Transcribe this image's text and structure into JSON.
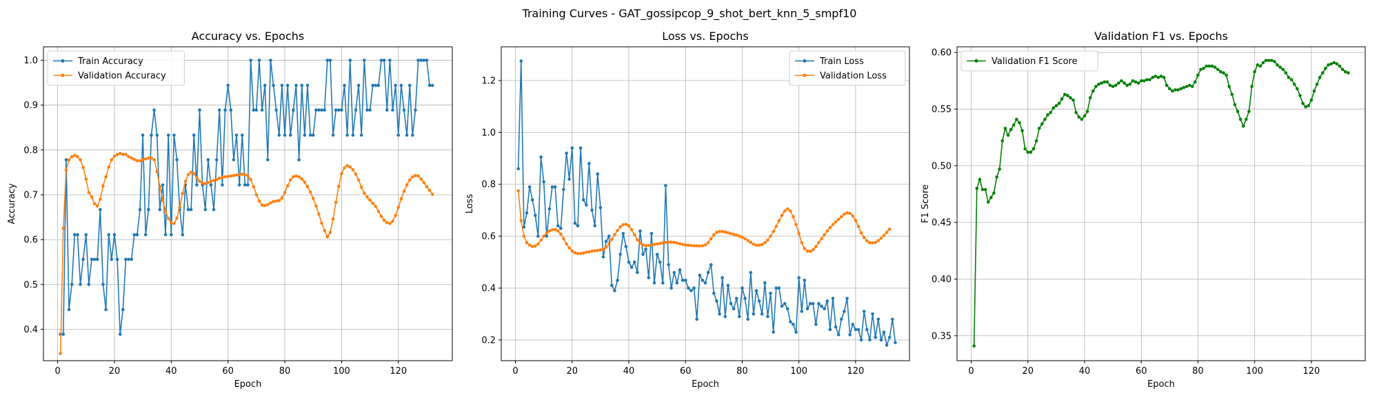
{
  "figure": {
    "suptitle": "Training Curves - GAT_gossipcop_9_shot_bert_knn_5_smpf10",
    "colors": {
      "blue": "#1f77b4",
      "orange": "#ff7f0e",
      "green": "#008000",
      "grid": "#b0b0b0"
    }
  },
  "chart_data": [
    {
      "type": "line",
      "title": "Accuracy vs. Epochs",
      "xlabel": "Epoch",
      "ylabel": "Accuracy",
      "xlim": [
        -5,
        139
      ],
      "ylim": [
        0.33,
        1.03
      ],
      "xticks": [
        0,
        20,
        40,
        60,
        80,
        100,
        120
      ],
      "yticks": [
        0.4,
        0.5,
        0.6,
        0.7,
        0.8,
        0.9,
        1.0
      ],
      "ytick_labels": [
        "0.4",
        "0.5",
        "0.6",
        "0.7",
        "0.8",
        "0.9",
        "1.0"
      ],
      "grid": true,
      "legend_loc": "upper left",
      "series": [
        {
          "name": "Train Accuracy",
          "color": "#1f77b4",
          "x_start": 1,
          "values": [
            0.389,
            0.389,
            0.778,
            0.444,
            0.5,
            0.611,
            0.611,
            0.5,
            0.556,
            0.611,
            0.5,
            0.556,
            0.556,
            0.556,
            0.667,
            0.5,
            0.444,
            0.611,
            0.556,
            0.611,
            0.556,
            0.389,
            0.444,
            0.556,
            0.556,
            0.556,
            0.611,
            0.611,
            0.667,
            0.833,
            0.611,
            0.667,
            0.833,
            0.889,
            0.833,
            0.667,
            0.722,
            0.611,
            0.833,
            0.611,
            0.833,
            0.778,
            0.667,
            0.611,
            0.722,
            0.667,
            0.667,
            0.833,
            0.722,
            0.889,
            0.722,
            0.667,
            0.778,
            0.722,
            0.667,
            0.778,
            0.889,
            0.722,
            0.889,
            0.944,
            0.889,
            0.778,
            0.833,
            0.722,
            0.833,
            0.722,
            0.722,
            1.0,
            0.889,
            0.889,
            1.0,
            0.889,
            0.944,
            0.778,
            1.0,
            0.944,
            0.889,
            0.833,
            0.944,
            0.833,
            0.944,
            0.833,
            0.889,
            0.944,
            0.778,
            0.944,
            0.833,
            0.944,
            0.833,
            0.833,
            0.889,
            0.889,
            0.889,
            0.889,
            1.0,
            1.0,
            0.833,
            0.889,
            0.889,
            0.889,
            0.944,
            0.833,
            1.0,
            0.833,
            0.889,
            0.944,
            0.833,
            1.0,
            0.889,
            0.889,
            0.944,
            0.944,
            0.944,
            1.0,
            1.0,
            0.889,
            1.0,
            0.889,
            0.944,
            0.833,
            0.944,
            0.889,
            0.833,
            0.944,
            0.833,
            0.889,
            1.0,
            1.0,
            1.0,
            1.0,
            0.944,
            0.944
          ]
        },
        {
          "name": "Validation Accuracy",
          "color": "#ff7f0e",
          "x_start": 1,
          "values": [
            0.346,
            0.625,
            0.755,
            0.778,
            0.785,
            0.788,
            0.785,
            0.778,
            0.761,
            0.735,
            0.705,
            0.695,
            0.68,
            0.675,
            0.69,
            0.72,
            0.74,
            0.762,
            0.778,
            0.786,
            0.79,
            0.792,
            0.79,
            0.79,
            0.785,
            0.782,
            0.779,
            0.776,
            0.776,
            0.778,
            0.78,
            0.782,
            0.782,
            0.778,
            0.752,
            0.718,
            0.688,
            0.663,
            0.647,
            0.638,
            0.636,
            0.648,
            0.672,
            0.703,
            0.73,
            0.745,
            0.75,
            0.747,
            0.738,
            0.73,
            0.726,
            0.725,
            0.727,
            0.73,
            0.732,
            0.734,
            0.737,
            0.739,
            0.74,
            0.741,
            0.742,
            0.743,
            0.744,
            0.745,
            0.746,
            0.745,
            0.742,
            0.734,
            0.718,
            0.7,
            0.686,
            0.677,
            0.676,
            0.678,
            0.682,
            0.685,
            0.686,
            0.687,
            0.693,
            0.705,
            0.72,
            0.733,
            0.74,
            0.742,
            0.74,
            0.735,
            0.728,
            0.718,
            0.706,
            0.692,
            0.675,
            0.657,
            0.637,
            0.62,
            0.606,
            0.616,
            0.646,
            0.683,
            0.719,
            0.747,
            0.76,
            0.765,
            0.762,
            0.756,
            0.746,
            0.733,
            0.717,
            0.704,
            0.695,
            0.688,
            0.681,
            0.674,
            0.663,
            0.652,
            0.643,
            0.638,
            0.636,
            0.641,
            0.654,
            0.672,
            0.691,
            0.708,
            0.722,
            0.733,
            0.74,
            0.743,
            0.742,
            0.735,
            0.727,
            0.718,
            0.71,
            0.701
          ]
        }
      ]
    },
    {
      "type": "line",
      "title": "Loss vs. Epochs",
      "xlabel": "Epoch",
      "ylabel": "Loss",
      "xlim": [
        -5,
        139
      ],
      "ylim": [
        0.12,
        1.33
      ],
      "xticks": [
        0,
        20,
        40,
        60,
        80,
        100,
        120
      ],
      "yticks": [
        0.2,
        0.4,
        0.6,
        0.8,
        1.0,
        1.2
      ],
      "ytick_labels": [
        "0.2",
        "0.4",
        "0.6",
        "0.8",
        "1.0",
        "1.2"
      ],
      "grid": true,
      "legend_loc": "upper right",
      "series": [
        {
          "name": "Train Loss",
          "color": "#1f77b4",
          "x_start": 1,
          "values": [
            0.86,
            1.275,
            0.635,
            0.69,
            0.79,
            0.74,
            0.68,
            0.6,
            0.905,
            0.81,
            0.6,
            0.705,
            0.79,
            0.79,
            0.64,
            0.63,
            0.78,
            0.92,
            0.82,
            0.94,
            0.65,
            0.64,
            0.94,
            0.74,
            0.72,
            0.88,
            0.7,
            0.64,
            0.84,
            0.71,
            0.52,
            0.58,
            0.6,
            0.41,
            0.39,
            0.43,
            0.53,
            0.61,
            0.56,
            0.5,
            0.48,
            0.5,
            0.46,
            0.62,
            0.53,
            0.55,
            0.44,
            0.61,
            0.42,
            0.53,
            0.5,
            0.42,
            0.795,
            0.49,
            0.4,
            0.46,
            0.42,
            0.47,
            0.43,
            0.43,
            0.4,
            0.39,
            0.4,
            0.28,
            0.45,
            0.43,
            0.42,
            0.46,
            0.49,
            0.38,
            0.35,
            0.3,
            0.44,
            0.29,
            0.41,
            0.34,
            0.32,
            0.36,
            0.29,
            0.4,
            0.36,
            0.28,
            0.46,
            0.3,
            0.39,
            0.35,
            0.3,
            0.42,
            0.29,
            0.38,
            0.23,
            0.4,
            0.4,
            0.33,
            0.34,
            0.32,
            0.27,
            0.26,
            0.23,
            0.44,
            0.31,
            0.43,
            0.32,
            0.34,
            0.34,
            0.26,
            0.34,
            0.33,
            0.32,
            0.35,
            0.24,
            0.36,
            0.25,
            0.22,
            0.28,
            0.31,
            0.36,
            0.22,
            0.26,
            0.24,
            0.24,
            0.2,
            0.31,
            0.24,
            0.2,
            0.3,
            0.21,
            0.28,
            0.2,
            0.23,
            0.18,
            0.21,
            0.28,
            0.19
          ]
        },
        {
          "name": "Validation Loss",
          "color": "#ff7f0e",
          "x_start": 1,
          "values": [
            0.775,
            0.66,
            0.6,
            0.575,
            0.565,
            0.56,
            0.562,
            0.57,
            0.585,
            0.6,
            0.612,
            0.62,
            0.625,
            0.625,
            0.62,
            0.608,
            0.59,
            0.57,
            0.555,
            0.543,
            0.536,
            0.533,
            0.533,
            0.535,
            0.538,
            0.54,
            0.542,
            0.544,
            0.545,
            0.547,
            0.55,
            0.558,
            0.57,
            0.588,
            0.606,
            0.622,
            0.636,
            0.644,
            0.646,
            0.64,
            0.625,
            0.605,
            0.586,
            0.573,
            0.566,
            0.563,
            0.564,
            0.566,
            0.568,
            0.57,
            0.572,
            0.574,
            0.576,
            0.577,
            0.577,
            0.576,
            0.574,
            0.571,
            0.568,
            0.566,
            0.565,
            0.564,
            0.563,
            0.563,
            0.562,
            0.563,
            0.566,
            0.575,
            0.59,
            0.605,
            0.615,
            0.618,
            0.618,
            0.616,
            0.613,
            0.61,
            0.607,
            0.604,
            0.6,
            0.596,
            0.59,
            0.583,
            0.576,
            0.569,
            0.565,
            0.565,
            0.568,
            0.575,
            0.585,
            0.6,
            0.618,
            0.638,
            0.66,
            0.68,
            0.697,
            0.705,
            0.697,
            0.675,
            0.645,
            0.61,
            0.575,
            0.552,
            0.542,
            0.542,
            0.548,
            0.56,
            0.575,
            0.59,
            0.605,
            0.62,
            0.633,
            0.645,
            0.655,
            0.665,
            0.675,
            0.685,
            0.69,
            0.688,
            0.678,
            0.66,
            0.637,
            0.613,
            0.595,
            0.582,
            0.575,
            0.574,
            0.576,
            0.583,
            0.592,
            0.603,
            0.615,
            0.627
          ]
        }
      ]
    },
    {
      "type": "line",
      "title": "Validation F1 vs. Epochs",
      "xlabel": "Epoch",
      "ylabel": "F1 Score",
      "xlim": [
        -5,
        139
      ],
      "ylim": [
        0.328,
        0.605
      ],
      "xticks": [
        0,
        20,
        40,
        60,
        80,
        100,
        120
      ],
      "yticks": [
        0.35,
        0.4,
        0.45,
        0.5,
        0.55,
        0.6
      ],
      "ytick_labels": [
        "0.35",
        "0.40",
        "0.45",
        "0.50",
        "0.55",
        "0.60"
      ],
      "grid": true,
      "legend_loc": "upper left",
      "series": [
        {
          "name": "Validation F1 Score",
          "color": "#008000",
          "x_start": 1,
          "values": [
            0.341,
            0.48,
            0.488,
            0.479,
            0.479,
            0.468,
            0.472,
            0.476,
            0.49,
            0.497,
            0.522,
            0.533,
            0.527,
            0.532,
            0.536,
            0.541,
            0.538,
            0.531,
            0.515,
            0.512,
            0.512,
            0.515,
            0.522,
            0.533,
            0.537,
            0.541,
            0.545,
            0.547,
            0.551,
            0.553,
            0.555,
            0.559,
            0.563,
            0.562,
            0.56,
            0.558,
            0.547,
            0.543,
            0.541,
            0.544,
            0.548,
            0.56,
            0.566,
            0.57,
            0.572,
            0.573,
            0.574,
            0.574,
            0.571,
            0.57,
            0.571,
            0.573,
            0.575,
            0.573,
            0.571,
            0.572,
            0.575,
            0.574,
            0.573,
            0.575,
            0.575,
            0.576,
            0.576,
            0.578,
            0.579,
            0.578,
            0.579,
            0.578,
            0.571,
            0.568,
            0.566,
            0.567,
            0.567,
            0.568,
            0.569,
            0.57,
            0.571,
            0.57,
            0.574,
            0.58,
            0.585,
            0.586,
            0.588,
            0.588,
            0.588,
            0.587,
            0.585,
            0.583,
            0.582,
            0.58,
            0.57,
            0.563,
            0.554,
            0.548,
            0.541,
            0.535,
            0.541,
            0.548,
            0.57,
            0.583,
            0.589,
            0.588,
            0.591,
            0.593,
            0.593,
            0.593,
            0.592,
            0.589,
            0.587,
            0.585,
            0.582,
            0.578,
            0.576,
            0.572,
            0.568,
            0.562,
            0.555,
            0.552,
            0.553,
            0.558,
            0.566,
            0.572,
            0.578,
            0.582,
            0.586,
            0.589,
            0.59,
            0.591,
            0.59,
            0.588,
            0.585,
            0.583,
            0.582
          ]
        }
      ]
    }
  ]
}
